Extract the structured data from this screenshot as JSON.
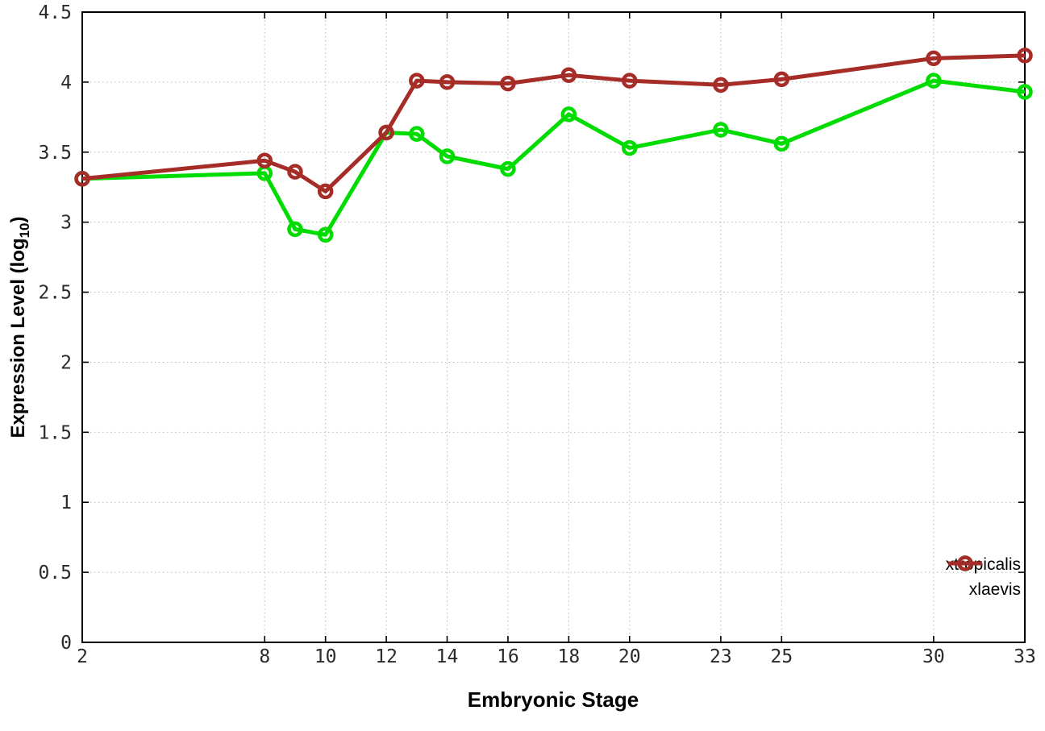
{
  "chart_data": {
    "type": "line",
    "title": "",
    "xlabel": "Embryonic Stage",
    "ylabel_prefix": "Expression Level (log",
    "ylabel_sub": "10",
    "ylabel_suffix": ")",
    "xlim": [
      2,
      33
    ],
    "ylim": [
      0,
      4.5
    ],
    "grid": true,
    "legend_position": "bottom-right",
    "x": [
      2,
      8,
      9,
      10,
      12,
      13,
      14,
      16,
      18,
      20,
      23,
      25,
      30,
      33
    ],
    "xticks": [
      2,
      8,
      10,
      12,
      14,
      16,
      18,
      20,
      23,
      25,
      30,
      33
    ],
    "ytick_values": [
      0,
      0.5,
      1,
      1.5,
      2,
      2.5,
      3,
      3.5,
      4,
      4.5
    ],
    "ytick_labels": [
      "0",
      "0.5",
      "1",
      "1.5",
      "2",
      "2.5",
      "3",
      "3.5",
      "4",
      "4.5"
    ],
    "series": [
      {
        "name": "xtropicalis",
        "color": "#00dc00",
        "values": [
          3.31,
          3.35,
          2.95,
          2.91,
          3.64,
          3.63,
          3.47,
          3.38,
          3.77,
          3.53,
          3.66,
          3.56,
          4.01,
          3.93
        ]
      },
      {
        "name": "xlaevis",
        "color": "#a62c28",
        "values": [
          3.31,
          3.44,
          3.36,
          3.22,
          3.64,
          4.01,
          4.0,
          3.99,
          4.05,
          4.01,
          3.98,
          4.02,
          4.17,
          4.19
        ]
      }
    ]
  }
}
